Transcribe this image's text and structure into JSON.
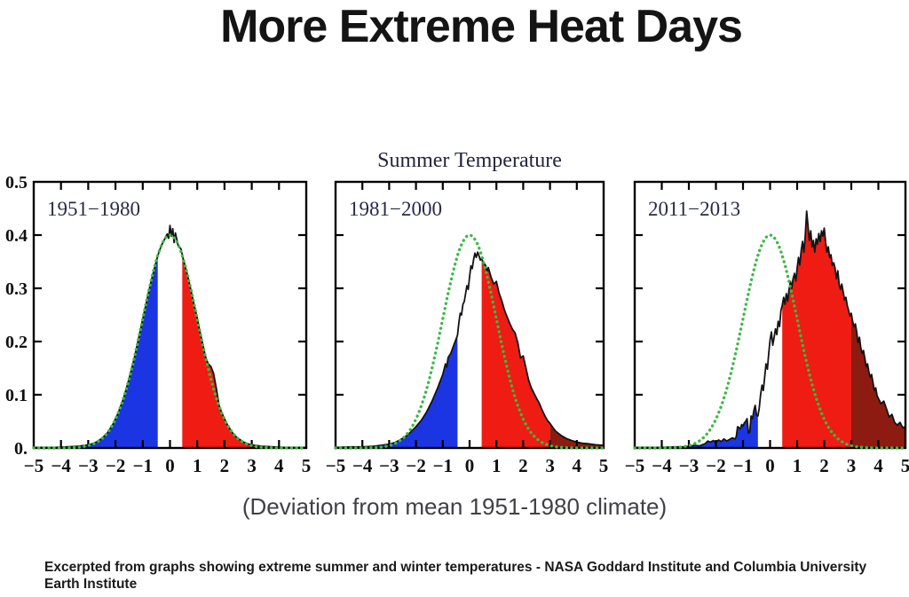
{
  "header": {
    "title": "More Extreme Heat Days"
  },
  "footer": {
    "caption": "Excerpted from graphs showing extreme summer and winter temperatures - NASA Goddard Institute and Columbia University Earth Institute"
  },
  "chart_data": {
    "type": "area",
    "suptitle": "Summer Temperature",
    "axis_note": "(Deviation from mean 1951-1980 climate)",
    "xlim": [
      -5,
      5
    ],
    "ylim": [
      0,
      0.5
    ],
    "x_ticks": [
      -5,
      -4,
      -3,
      -2,
      -1,
      0,
      1,
      2,
      3,
      4,
      5
    ],
    "x_tick_labels": [
      "−5",
      "−4",
      "−3",
      "−2",
      "−1",
      "0",
      "1",
      "2",
      "3",
      "4",
      "5"
    ],
    "y_ticks": [
      0,
      0.1,
      0.2,
      0.3,
      0.4,
      0.5
    ],
    "y_tick_labels": [
      "0.",
      "0.1",
      "0.2",
      "0.3",
      "0.4",
      "0.5"
    ],
    "grid": false,
    "colors": {
      "cold": "#1c35e2",
      "neutral": "#ffffff",
      "hot": "#ee1c13",
      "extreme_hot": "#8e1b12",
      "reference": "#3cb843",
      "outline": "#131313",
      "frame": "#000000"
    },
    "band_boundaries": {
      "cold_max": -0.45,
      "hot_min": 0.45,
      "extreme_hot_min": 3
    },
    "reference_curve": {
      "name": "1951-1980 normal distribution",
      "mean": 0,
      "sd": 1,
      "peak": 0.4
    },
    "panels": [
      {
        "label": "1951−1980",
        "points": [
          [
            -5,
            0.001
          ],
          [
            -4.2,
            0.001
          ],
          [
            -3.8,
            0.002
          ],
          [
            -3.4,
            0.003
          ],
          [
            -3.1,
            0.005
          ],
          [
            -2.9,
            0.007
          ],
          [
            -2.7,
            0.011
          ],
          [
            -2.5,
            0.018
          ],
          [
            -2.3,
            0.028
          ],
          [
            -2.1,
            0.044
          ],
          [
            -1.9,
            0.066
          ],
          [
            -1.7,
            0.094
          ],
          [
            -1.5,
            0.13
          ],
          [
            -1.3,
            0.171
          ],
          [
            -1.1,
            0.218
          ],
          [
            -0.9,
            0.266
          ],
          [
            -0.7,
            0.312
          ],
          [
            -0.5,
            0.352
          ],
          [
            -0.4,
            0.369
          ],
          [
            -0.3,
            0.382
          ],
          [
            -0.2,
            0.392
          ],
          [
            -0.1,
            0.402
          ],
          [
            -0.05,
            0.394
          ],
          [
            0,
            0.418
          ],
          [
            0.05,
            0.398
          ],
          [
            0.1,
            0.412
          ],
          [
            0.15,
            0.386
          ],
          [
            0.2,
            0.404
          ],
          [
            0.3,
            0.38
          ],
          [
            0.4,
            0.374
          ],
          [
            0.5,
            0.352
          ],
          [
            0.6,
            0.333
          ],
          [
            0.7,
            0.312
          ],
          [
            0.8,
            0.289
          ],
          [
            0.9,
            0.266
          ],
          [
            1,
            0.244
          ],
          [
            1.1,
            0.218
          ],
          [
            1.2,
            0.196
          ],
          [
            1.3,
            0.172
          ],
          [
            1.4,
            0.158
          ],
          [
            1.5,
            0.153
          ],
          [
            1.6,
            0.14
          ],
          [
            1.7,
            0.112
          ],
          [
            1.8,
            0.08
          ],
          [
            1.9,
            0.066
          ],
          [
            2,
            0.055
          ],
          [
            2.1,
            0.044
          ],
          [
            2.2,
            0.036
          ],
          [
            2.3,
            0.028
          ],
          [
            2.4,
            0.022
          ],
          [
            2.5,
            0.018
          ],
          [
            2.7,
            0.011
          ],
          [
            2.9,
            0.007
          ],
          [
            3.1,
            0.005
          ],
          [
            3.4,
            0.003
          ],
          [
            3.8,
            0.002
          ],
          [
            4.2,
            0.001
          ],
          [
            5,
            0.001
          ]
        ]
      },
      {
        "label": "1981−2000",
        "points": [
          [
            -5,
            0.001
          ],
          [
            -4.4,
            0.002
          ],
          [
            -4,
            0.002
          ],
          [
            -3.6,
            0.003
          ],
          [
            -3.3,
            0.005
          ],
          [
            -3,
            0.007
          ],
          [
            -2.8,
            0.01
          ],
          [
            -2.6,
            0.015
          ],
          [
            -2.4,
            0.021
          ],
          [
            -2.2,
            0.03
          ],
          [
            -2,
            0.04
          ],
          [
            -1.8,
            0.052
          ],
          [
            -1.6,
            0.068
          ],
          [
            -1.4,
            0.088
          ],
          [
            -1.2,
            0.112
          ],
          [
            -1.1,
            0.125
          ],
          [
            -1,
            0.138
          ],
          [
            -0.9,
            0.158
          ],
          [
            -0.85,
            0.152
          ],
          [
            -0.8,
            0.17
          ],
          [
            -0.7,
            0.178
          ],
          [
            -0.6,
            0.192
          ],
          [
            -0.5,
            0.205
          ],
          [
            -0.45,
            0.212
          ],
          [
            -0.4,
            0.235
          ],
          [
            -0.35,
            0.253
          ],
          [
            -0.3,
            0.25
          ],
          [
            -0.25,
            0.27
          ],
          [
            -0.2,
            0.275
          ],
          [
            -0.15,
            0.29
          ],
          [
            -0.1,
            0.305
          ],
          [
            -0.05,
            0.298
          ],
          [
            0,
            0.322
          ],
          [
            0.05,
            0.342
          ],
          [
            0.1,
            0.337
          ],
          [
            0.15,
            0.354
          ],
          [
            0.2,
            0.366
          ],
          [
            0.25,
            0.358
          ],
          [
            0.3,
            0.368
          ],
          [
            0.35,
            0.361
          ],
          [
            0.4,
            0.353
          ],
          [
            0.45,
            0.356
          ],
          [
            0.5,
            0.349
          ],
          [
            0.6,
            0.343
          ],
          [
            0.65,
            0.331
          ],
          [
            0.7,
            0.339
          ],
          [
            0.8,
            0.321
          ],
          [
            0.9,
            0.308
          ],
          [
            1,
            0.313
          ],
          [
            1.1,
            0.291
          ],
          [
            1.2,
            0.277
          ],
          [
            1.3,
            0.259
          ],
          [
            1.4,
            0.246
          ],
          [
            1.5,
            0.234
          ],
          [
            1.6,
            0.223
          ],
          [
            1.7,
            0.216
          ],
          [
            1.8,
            0.197
          ],
          [
            1.9,
            0.169
          ],
          [
            2,
            0.173
          ],
          [
            2.1,
            0.151
          ],
          [
            2.2,
            0.128
          ],
          [
            2.3,
            0.113
          ],
          [
            2.4,
            0.103
          ],
          [
            2.5,
            0.093
          ],
          [
            2.6,
            0.084
          ],
          [
            2.7,
            0.072
          ],
          [
            2.8,
            0.061
          ],
          [
            2.9,
            0.052
          ],
          [
            3,
            0.046
          ],
          [
            3.1,
            0.039
          ],
          [
            3.2,
            0.032
          ],
          [
            3.4,
            0.024
          ],
          [
            3.6,
            0.018
          ],
          [
            3.8,
            0.014
          ],
          [
            4,
            0.011
          ],
          [
            4.2,
            0.009
          ],
          [
            4.4,
            0.008
          ],
          [
            4.7,
            0.006
          ],
          [
            5,
            0.005
          ]
        ]
      },
      {
        "label": "2011−2013",
        "points": [
          [
            -5,
            0.001
          ],
          [
            -4.5,
            0.001
          ],
          [
            -4,
            0.001
          ],
          [
            -3.5,
            0.002
          ],
          [
            -3.2,
            0.002
          ],
          [
            -3,
            0.003
          ],
          [
            -2.8,
            0.005
          ],
          [
            -2.6,
            0.004
          ],
          [
            -2.5,
            0.006
          ],
          [
            -2.4,
            0.008
          ],
          [
            -2.3,
            0.013
          ],
          [
            -2.2,
            0.011
          ],
          [
            -2.1,
            0.014
          ],
          [
            -2,
            0.01
          ],
          [
            -1.9,
            0.015
          ],
          [
            -1.8,
            0.012
          ],
          [
            -1.7,
            0.017
          ],
          [
            -1.6,
            0.013
          ],
          [
            -1.5,
            0.016
          ],
          [
            -1.4,
            0.019
          ],
          [
            -1.3,
            0.017
          ],
          [
            -1.25,
            0.021
          ],
          [
            -1.2,
            0.04
          ],
          [
            -1.1,
            0.036
          ],
          [
            -1.05,
            0.044
          ],
          [
            -1,
            0.041
          ],
          [
            -0.95,
            0.047
          ],
          [
            -0.9,
            0.05
          ],
          [
            -0.85,
            0.055
          ],
          [
            -0.8,
            0.028
          ],
          [
            -0.75,
            0.03
          ],
          [
            -0.7,
            0.06
          ],
          [
            -0.65,
            0.055
          ],
          [
            -0.6,
            0.07
          ],
          [
            -0.55,
            0.08
          ],
          [
            -0.5,
            0.062
          ],
          [
            -0.45,
            0.06
          ],
          [
            -0.4,
            0.075
          ],
          [
            -0.35,
            0.1
          ],
          [
            -0.3,
            0.118
          ],
          [
            -0.25,
            0.108
          ],
          [
            -0.2,
            0.133
          ],
          [
            -0.15,
            0.158
          ],
          [
            -0.1,
            0.148
          ],
          [
            -0.05,
            0.178
          ],
          [
            0,
            0.203
          ],
          [
            0.05,
            0.218
          ],
          [
            0.1,
            0.193
          ],
          [
            0.15,
            0.208
          ],
          [
            0.2,
            0.224
          ],
          [
            0.25,
            0.213
          ],
          [
            0.3,
            0.238
          ],
          [
            0.35,
            0.228
          ],
          [
            0.4,
            0.258
          ],
          [
            0.45,
            0.268
          ],
          [
            0.5,
            0.283
          ],
          [
            0.55,
            0.27
          ],
          [
            0.6,
            0.29
          ],
          [
            0.65,
            0.276
          ],
          [
            0.7,
            0.298
          ],
          [
            0.75,
            0.313
          ],
          [
            0.8,
            0.3
          ],
          [
            0.85,
            0.318
          ],
          [
            0.9,
            0.328
          ],
          [
            0.95,
            0.314
          ],
          [
            1,
            0.338
          ],
          [
            1.05,
            0.358
          ],
          [
            1.1,
            0.344
          ],
          [
            1.15,
            0.372
          ],
          [
            1.2,
            0.388
          ],
          [
            1.25,
            0.368
          ],
          [
            1.3,
            0.398
          ],
          [
            1.35,
            0.445
          ],
          [
            1.4,
            0.418
          ],
          [
            1.45,
            0.39
          ],
          [
            1.5,
            0.408
          ],
          [
            1.55,
            0.378
          ],
          [
            1.6,
            0.39
          ],
          [
            1.65,
            0.368
          ],
          [
            1.7,
            0.393
          ],
          [
            1.75,
            0.383
          ],
          [
            1.8,
            0.403
          ],
          [
            1.85,
            0.388
          ],
          [
            1.9,
            0.408
          ],
          [
            1.95,
            0.398
          ],
          [
            2,
            0.413
          ],
          [
            2.05,
            0.388
          ],
          [
            2.1,
            0.368
          ],
          [
            2.15,
            0.378
          ],
          [
            2.2,
            0.358
          ],
          [
            2.25,
            0.363
          ],
          [
            2.3,
            0.343
          ],
          [
            2.35,
            0.348
          ],
          [
            2.4,
            0.338
          ],
          [
            2.45,
            0.318
          ],
          [
            2.5,
            0.333
          ],
          [
            2.55,
            0.308
          ],
          [
            2.6,
            0.298
          ],
          [
            2.65,
            0.308
          ],
          [
            2.7,
            0.293
          ],
          [
            2.75,
            0.278
          ],
          [
            2.8,
            0.283
          ],
          [
            2.85,
            0.268
          ],
          [
            2.9,
            0.258
          ],
          [
            2.95,
            0.248
          ],
          [
            3,
            0.253
          ],
          [
            3.05,
            0.238
          ],
          [
            3.1,
            0.228
          ],
          [
            3.15,
            0.233
          ],
          [
            3.2,
            0.218
          ],
          [
            3.25,
            0.198
          ],
          [
            3.3,
            0.208
          ],
          [
            3.35,
            0.188
          ],
          [
            3.4,
            0.178
          ],
          [
            3.45,
            0.183
          ],
          [
            3.5,
            0.168
          ],
          [
            3.55,
            0.153
          ],
          [
            3.6,
            0.158
          ],
          [
            3.65,
            0.143
          ],
          [
            3.7,
            0.133
          ],
          [
            3.75,
            0.138
          ],
          [
            3.8,
            0.123
          ],
          [
            3.85,
            0.108
          ],
          [
            3.9,
            0.113
          ],
          [
            3.95,
            0.098
          ],
          [
            4,
            0.093
          ],
          [
            4.1,
            0.083
          ],
          [
            4.2,
            0.088
          ],
          [
            4.3,
            0.073
          ],
          [
            4.4,
            0.058
          ],
          [
            4.5,
            0.063
          ],
          [
            4.6,
            0.048
          ],
          [
            4.7,
            0.043
          ],
          [
            4.8,
            0.048
          ],
          [
            4.9,
            0.038
          ],
          [
            5,
            0.04
          ]
        ]
      }
    ]
  }
}
